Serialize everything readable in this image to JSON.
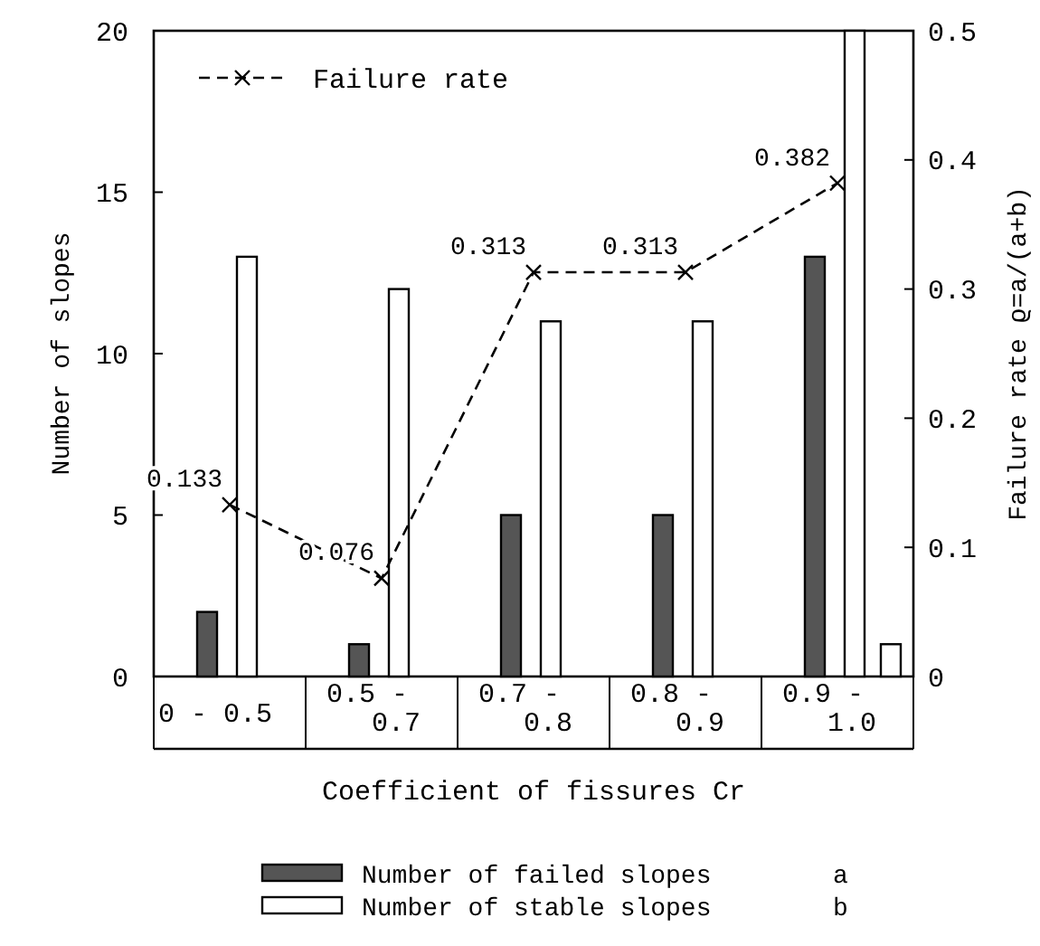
{
  "chart_data": {
    "type": "bar",
    "xlabel": "Coefficient of fissures Cr",
    "ylabel": "Number of slopes",
    "y2label": "Failure rate ϱ=a/(a+b)",
    "categories": [
      "0 - 0.5",
      "0.5 - 0.7",
      "0.7 - 0.8",
      "0.8 - 0.9",
      "0.9 - 1.0"
    ],
    "series": [
      {
        "name": "Number of failed slopes a",
        "color": "#555555",
        "values": [
          2,
          1,
          5,
          5,
          13
        ]
      },
      {
        "name": "Number of stable slopes b",
        "color": "#ffffff",
        "values": [
          13,
          12,
          11,
          11,
          20
        ]
      },
      {
        "color": "#ffffff",
        "values": [
          null,
          null,
          null,
          null,
          1
        ]
      },
      {
        "name": "Failure rate",
        "type": "line",
        "axis": "y2",
        "color": "#000000",
        "marker": "cross",
        "line_style": "dashed",
        "values": [
          0.133,
          0.076,
          0.313,
          0.313,
          0.382
        ],
        "value_labels": [
          "0.133",
          "0.076",
          "0.313",
          "0.313",
          "0.382"
        ]
      }
    ],
    "ylim": [
      0,
      20
    ],
    "yticks": [
      0,
      5,
      10,
      15,
      20
    ],
    "y2lim": [
      0,
      0.5
    ],
    "y2ticks": [
      0,
      0.1,
      0.2,
      0.3,
      0.4,
      0.5
    ],
    "grid": false,
    "legend": "bottom"
  }
}
